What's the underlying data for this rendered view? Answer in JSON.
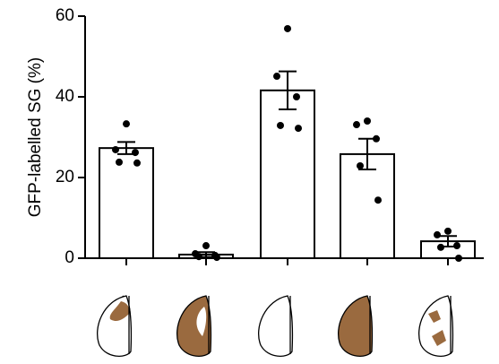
{
  "chart_data": {
    "type": "bar",
    "ylabel": "GFP-labelled SG (%)",
    "categories": [
      null,
      null,
      null,
      null,
      null
    ],
    "values": [
      27.3,
      0.9,
      41.6,
      25.8,
      4.2
    ],
    "errors": [
      1.5,
      0.6,
      4.7,
      3.8,
      1.3
    ],
    "points": [
      [
        33.3,
        26.9,
        26.2,
        23.8,
        23.6
      ],
      [
        3.1,
        1.1,
        0.7,
        0.4,
        0.2
      ],
      [
        56.9,
        45.1,
        40,
        32.9,
        32.2
      ],
      [
        34,
        33.1,
        29.6,
        22.9,
        14.4
      ],
      [
        6.7,
        5.8,
        3.1,
        2.7,
        0
      ]
    ],
    "color": "#ffffff",
    "ylim": [
      0,
      60
    ],
    "yticks": [
      0,
      20,
      40,
      60
    ]
  }
}
